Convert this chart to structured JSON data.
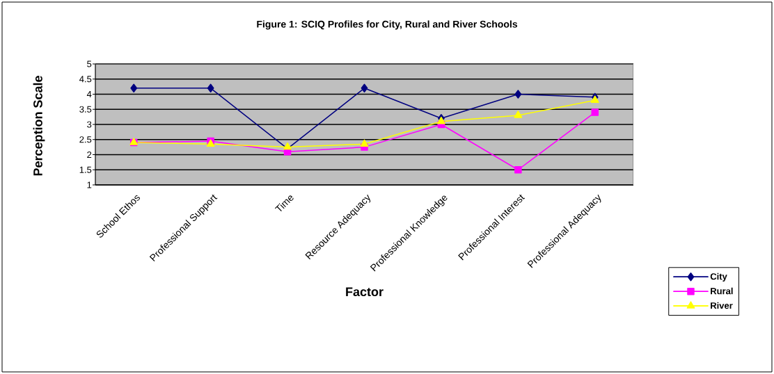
{
  "chart_data": {
    "type": "line",
    "title": "Figure 1: SCIQ Profiles for City, Rural and River Schools",
    "xlabel": "Factor",
    "ylabel": "Perception Scale",
    "categories": [
      "School Ethos",
      "Professional Support",
      "Time",
      "Resource Adequacy",
      "Professional Knowledge",
      "Professional Interest",
      "Professional  Adequacy"
    ],
    "series": [
      {
        "name": "City",
        "color": "#000080",
        "marker": "diamond",
        "values": [
          4.2,
          4.2,
          2.2,
          4.2,
          3.2,
          4.0,
          3.9
        ]
      },
      {
        "name": "Rural",
        "color": "#ff00ff",
        "marker": "square",
        "values": [
          2.4,
          2.45,
          2.1,
          2.25,
          3.0,
          1.5,
          3.4
        ]
      },
      {
        "name": "River",
        "color": "#ffff00",
        "marker": "triangle",
        "values": [
          2.4,
          2.35,
          2.25,
          2.35,
          3.1,
          3.3,
          3.8
        ]
      }
    ],
    "ylim": [
      1,
      5
    ],
    "yticks": [
      1,
      1.5,
      2,
      2.5,
      3,
      3.5,
      4,
      4.5,
      5
    ],
    "grid": "y",
    "legend": "bottom right",
    "line_style": "solid"
  }
}
